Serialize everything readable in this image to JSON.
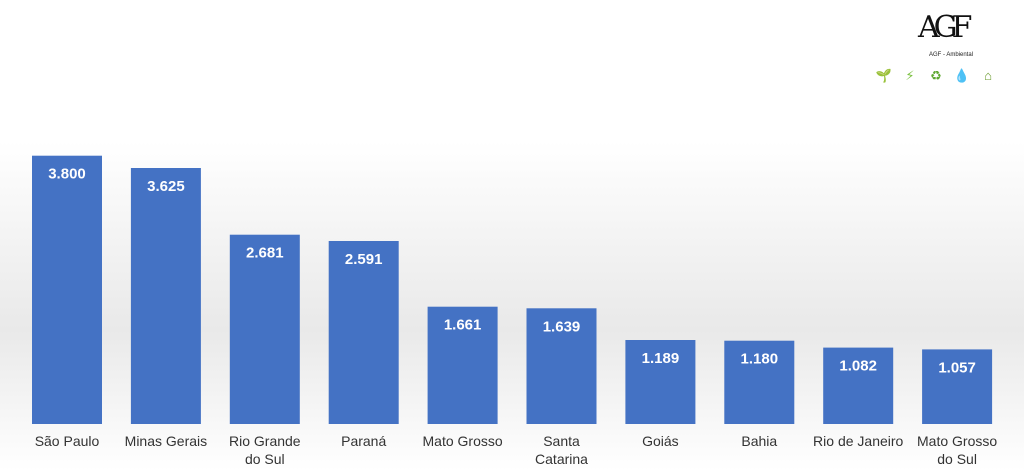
{
  "brand": {
    "logo_text": "AGF",
    "subtitle": "AGF - Ambiental",
    "icons": [
      {
        "name": "seedling-icon",
        "glyph": "🌱",
        "color": "#3a8f2a"
      },
      {
        "name": "energy-icon",
        "glyph": "⚡",
        "color": "#7cc142"
      },
      {
        "name": "recycle-bin-icon",
        "glyph": "♻",
        "color": "#5fa832"
      },
      {
        "name": "water-icon",
        "glyph": "💧",
        "color": "#2aa3c9"
      },
      {
        "name": "house-icon",
        "glyph": "⌂",
        "color": "#6a9a2c"
      }
    ]
  },
  "colors": {
    "bar": "#4472c4",
    "bar_top": "#4a79cc"
  },
  "chart_data": {
    "type": "bar",
    "title": "",
    "xlabel": "",
    "ylabel": "",
    "categories": [
      [
        "São Paulo"
      ],
      [
        "Minas Gerais"
      ],
      [
        "Rio Grande",
        "do Sul"
      ],
      [
        "Paraná"
      ],
      [
        "Mato Grosso"
      ],
      [
        "Santa",
        "Catarina"
      ],
      [
        "Goiás"
      ],
      [
        "Bahia"
      ],
      [
        "Rio de Janeiro"
      ],
      [
        "Mato Grosso",
        "do Sul"
      ]
    ],
    "values": [
      3800,
      3625,
      2681,
      2591,
      1661,
      1639,
      1189,
      1180,
      1082,
      1057
    ],
    "value_labels": [
      "3.800",
      "3.625",
      "2.681",
      "2.591",
      "1.661",
      "1.639",
      "1.189",
      "1.180",
      "1.082",
      "1.057"
    ],
    "ylim": [
      0,
      4220
    ],
    "grid": false,
    "legend": "none"
  }
}
